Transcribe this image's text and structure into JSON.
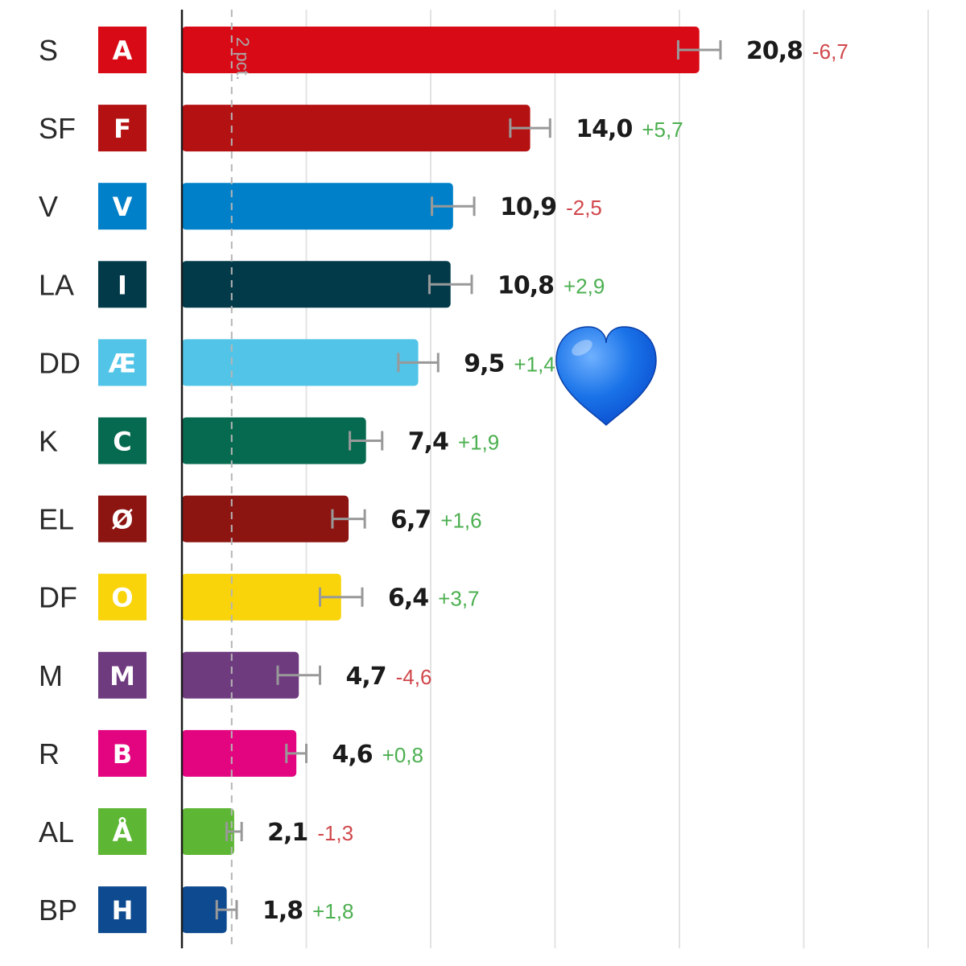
{
  "chart_data": {
    "type": "bar",
    "orientation": "horizontal",
    "reference_line": {
      "value": 2,
      "label": "2 pct."
    },
    "xlim": [
      0,
      30
    ],
    "grid": true,
    "accent_icon": "blue-heart-icon",
    "accent_color": "#1a73e8",
    "bars": [
      {
        "abbr": "S",
        "letter": "A",
        "color": "#d80a16",
        "value": 20.8,
        "value_label": "20,8",
        "change": "-6,7",
        "err": 0.85
      },
      {
        "abbr": "SF",
        "letter": "F",
        "color": "#b41112",
        "value": 14.0,
        "value_label": "14,0",
        "change": "+5,7",
        "err": 0.8
      },
      {
        "abbr": "V",
        "letter": "V",
        "color": "#0080c8",
        "value": 10.9,
        "value_label": "10,9",
        "change": "-2,5",
        "err": 0.85
      },
      {
        "abbr": "LA",
        "letter": "I",
        "color": "#033a4a",
        "value": 10.8,
        "value_label": "10,8",
        "change": "+2,9",
        "err": 0.85
      },
      {
        "abbr": "DD",
        "letter": "Æ",
        "color": "#52c4e8",
        "value": 9.5,
        "value_label": "9,5",
        "change": "+1,4",
        "err": 0.8
      },
      {
        "abbr": "K",
        "letter": "C",
        "color": "#056a4f",
        "value": 7.4,
        "value_label": "7,4",
        "change": "+1,9",
        "err": 0.65
      },
      {
        "abbr": "EL",
        "letter": "Ø",
        "color": "#8c1512",
        "value": 6.7,
        "value_label": "6,7",
        "change": "+1,6",
        "err": 0.65
      },
      {
        "abbr": "DF",
        "letter": "O",
        "color": "#f9d40b",
        "value": 6.4,
        "value_label": "6,4",
        "change": "+3,7",
        "err": 0.85
      },
      {
        "abbr": "M",
        "letter": "M",
        "color": "#6f3b7f",
        "value": 4.7,
        "value_label": "4,7",
        "change": "-4,6",
        "err": 0.85
      },
      {
        "abbr": "R",
        "letter": "B",
        "color": "#e3057f",
        "value": 4.6,
        "value_label": "4,6",
        "change": "+0,8",
        "err": 0.4
      },
      {
        "abbr": "AL",
        "letter": "Å",
        "color": "#5db634",
        "value": 2.1,
        "value_label": "2,1",
        "change": "-1,3",
        "err": 0.3
      },
      {
        "abbr": "BP",
        "letter": "H",
        "color": "#0e4a8f",
        "value": 1.8,
        "value_label": "1,8",
        "change": "+1,8",
        "err": 0.4
      }
    ]
  },
  "colors": {
    "negative": "#d0474b",
    "positive": "#4caf50",
    "gridline": "#e3e3e3",
    "errorbar": "#999999",
    "axis": "#1b1b1b",
    "reference": "#b5b5b5"
  }
}
